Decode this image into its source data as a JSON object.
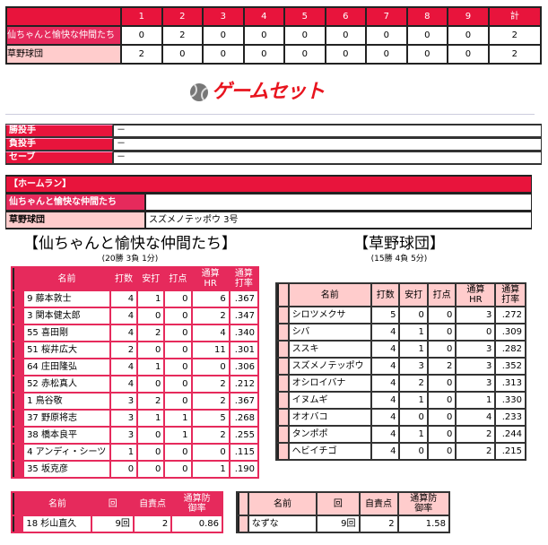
{
  "scoreboard": {
    "headers": [
      "",
      "1",
      "2",
      "3",
      "4",
      "5",
      "6",
      "7",
      "8",
      "9",
      "計"
    ],
    "rows": [
      {
        "team": "仙ちゃんと愉快な仲間たち",
        "scores": [
          "0",
          "2",
          "0",
          "0",
          "0",
          "0",
          "0",
          "0",
          "0",
          "2"
        ]
      },
      {
        "team": "草野球団",
        "scores": [
          "2",
          "0",
          "0",
          "0",
          "0",
          "0",
          "0",
          "0",
          "0",
          "2"
        ]
      }
    ]
  },
  "logo": {
    "text": "ゲームセット",
    "icon": "baseball-icon"
  },
  "pitchers": [
    {
      "label": "勝投手",
      "value": "－"
    },
    {
      "label": "負投手",
      "value": "－"
    },
    {
      "label": "セーブ",
      "value": "－"
    }
  ],
  "homeruns": {
    "title": "【ホームラン】",
    "rows": [
      {
        "team": "仙ちゃんと愉快な仲間たち",
        "value": ""
      },
      {
        "team": "草野球団",
        "value": "スズメノテッポウ 3号"
      }
    ]
  },
  "teams": [
    {
      "title": "【仙ちゃんと愉快な仲間たち】",
      "record": "(20勝 3負 1分)"
    },
    {
      "title": "【草野球団】",
      "record": "(15勝 4負 5分)"
    }
  ],
  "batting_headers": [
    "名前",
    "打数",
    "安打",
    "打点",
    "通算HR",
    "通算打率"
  ],
  "batting_left": [
    [
      "9 藤本敦士",
      "4",
      "1",
      "0",
      "6",
      ".367"
    ],
    [
      "3 関本健太郎",
      "4",
      "0",
      "0",
      "2",
      ".347"
    ],
    [
      "55 喜田剛",
      "4",
      "2",
      "0",
      "4",
      ".340"
    ],
    [
      "51 桜井広大",
      "2",
      "0",
      "0",
      "11",
      ".301"
    ],
    [
      "64 庄田隆弘",
      "4",
      "1",
      "0",
      "0",
      ".306"
    ],
    [
      "52 赤松真人",
      "4",
      "0",
      "0",
      "2",
      ".212"
    ],
    [
      "1 鳥谷敬",
      "3",
      "2",
      "0",
      "2",
      ".367"
    ],
    [
      "37 野原将志",
      "3",
      "1",
      "1",
      "5",
      ".268"
    ],
    [
      "38 橋本良平",
      "3",
      "0",
      "1",
      "2",
      ".255"
    ],
    [
      "4 アンディ・シーツ",
      "1",
      "0",
      "0",
      "0",
      ".115"
    ],
    [
      "35 坂克彦",
      "0",
      "0",
      "0",
      "1",
      ".190"
    ]
  ],
  "batting_right": [
    [
      "シロツメクサ",
      "5",
      "0",
      "0",
      "3",
      ".272"
    ],
    [
      "シバ",
      "4",
      "1",
      "0",
      "0",
      ".309"
    ],
    [
      "ススキ",
      "4",
      "1",
      "0",
      "3",
      ".282"
    ],
    [
      "スズメノテッポウ",
      "4",
      "3",
      "2",
      "3",
      ".352"
    ],
    [
      "オシロイバナ",
      "4",
      "2",
      "0",
      "3",
      ".313"
    ],
    [
      "イヌムギ",
      "4",
      "1",
      "0",
      "1",
      ".330"
    ],
    [
      "オオバコ",
      "4",
      "0",
      "0",
      "4",
      ".233"
    ],
    [
      "タンポポ",
      "4",
      "1",
      "0",
      "2",
      ".244"
    ],
    [
      "ヘビイチゴ",
      "4",
      "0",
      "0",
      "2",
      ".215"
    ]
  ],
  "pitching_headers": [
    "名前",
    "回",
    "自責点",
    "通算防御率"
  ],
  "pitching_left": [
    [
      "18 杉山直久",
      "9回",
      "2",
      "0.86"
    ]
  ],
  "pitching_right": [
    [
      "なずな",
      "9回",
      "2",
      "1.58"
    ]
  ],
  "colors": {
    "header_red": "#e8143c",
    "left_team": "#e62a5c",
    "right_team": "#ffcccc"
  }
}
